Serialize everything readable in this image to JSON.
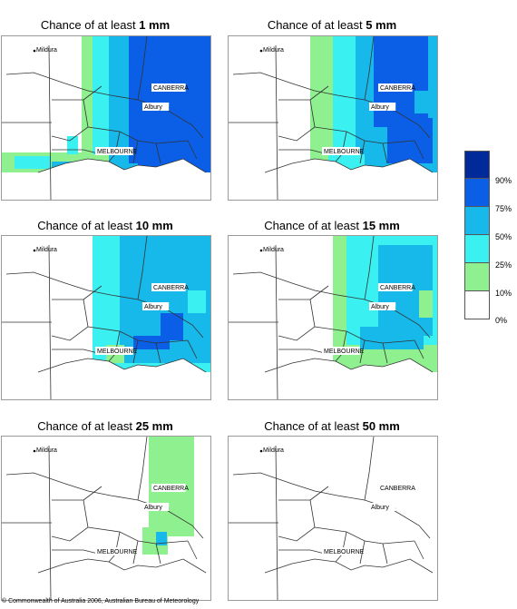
{
  "panels": [
    {
      "title_prefix": "Chance of at least ",
      "amount": "1 mm",
      "pattern": "p1"
    },
    {
      "title_prefix": "Chance of at least ",
      "amount": "5 mm",
      "pattern": "p5"
    },
    {
      "title_prefix": "Chance of at least ",
      "amount": "10 mm",
      "pattern": "p10"
    },
    {
      "title_prefix": "Chance of at least ",
      "amount": "15 mm",
      "pattern": "p15"
    },
    {
      "title_prefix": "Chance of at least ",
      "amount": "25 mm",
      "pattern": "p25"
    },
    {
      "title_prefix": "Chance of at least ",
      "amount": "50 mm",
      "pattern": "p50"
    }
  ],
  "cities": {
    "mildura": "Mildura",
    "canberra": "CANBERRA",
    "albury": "Albury",
    "melbourne": "MELBOURNE"
  },
  "legend": {
    "labels": [
      "90%",
      "75%",
      "50%",
      "25%",
      "10%",
      "0%"
    ],
    "colors": [
      "#002a9a",
      "#0b5fe6",
      "#17b9ea",
      "#3af0f0",
      "#8ef08e",
      "#ffffff"
    ]
  },
  "copyright": "© Commonwealth of Australia 2006, Australian Bureau of Meteorology"
}
